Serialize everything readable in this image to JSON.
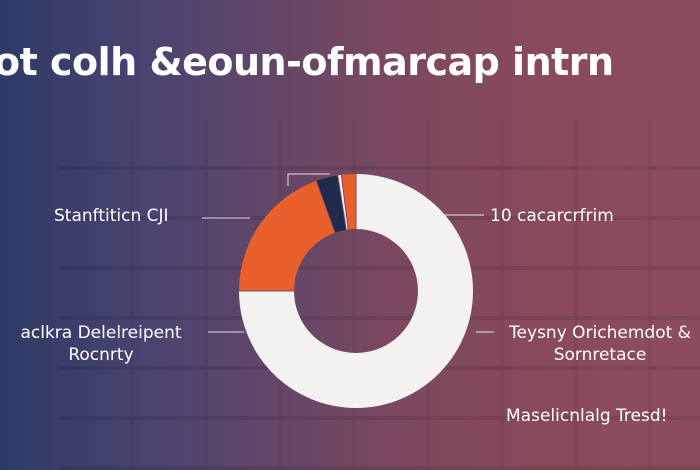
{
  "header": {
    "title": "ot colh  &eoun-ofmarcap intrn"
  },
  "chart_data": {
    "type": "pie",
    "donut": true,
    "title": "ot colh  &eoun-ofmarcap intrn",
    "slices": [
      {
        "label": "10 cacarcrfrim",
        "value": 75,
        "color": "#f4f1f1"
      },
      {
        "label": "Stanftiticn CJI",
        "value": 19.5,
        "color": "#e8602c"
      },
      {
        "label": "",
        "value": 3,
        "color": "#1f2a4d"
      },
      {
        "label": "",
        "value": 0.5,
        "color": "#f4f1f1"
      },
      {
        "label": "",
        "value": 2,
        "color": "#e8602c"
      }
    ],
    "labels": {
      "left_top": "Stanftiticn CJI",
      "left_mid_line1": "aclkra  Delelreipent",
      "left_mid_line2": "Rocnrty",
      "right_top": "10 cacarcrfrim",
      "right_mid_line1": "Teysny Orichemdot &",
      "right_mid_line2": "Sornretace",
      "bottom_right": "Maselicnlalg Tresd!"
    }
  }
}
